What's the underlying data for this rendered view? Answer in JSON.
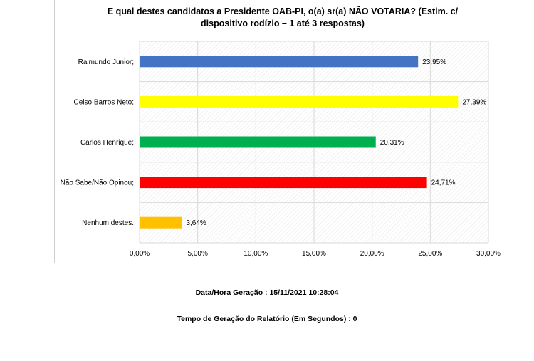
{
  "chart_data": {
    "type": "bar",
    "orientation": "horizontal",
    "title_lines": [
      "E qual destes candidatos a Presidente OAB-PI, o(a) sr(a) NÃO VOTARIA? (Estim. c/",
      "dispositivo rodízio – 1 até 3 respostas)"
    ],
    "categories": [
      "Raimundo Junior;",
      "Celso Barros Neto;",
      "Carlos Henrique;",
      "Não Sabe/Não Opinou;",
      "Nenhum destes."
    ],
    "values": [
      23.95,
      27.39,
      20.31,
      24.71,
      3.64
    ],
    "value_labels": [
      "23,95%",
      "27,39%",
      "20,31%",
      "24,71%",
      "3,64%"
    ],
    "colors": [
      "#4472c4",
      "#ffff00",
      "#00b050",
      "#ff0000",
      "#ffc000"
    ],
    "xlim": [
      0,
      30
    ],
    "x_ticks": [
      0,
      5,
      10,
      15,
      20,
      25,
      30
    ],
    "x_tick_labels": [
      "0,00%",
      "5,00%",
      "10,00%",
      "15,00%",
      "20,00%",
      "25,00%",
      "30,00%"
    ],
    "grid": true,
    "legend": "none"
  },
  "footer": {
    "generated_at": "Data/Hora Geração : 15/11/2021 10:28:04",
    "generation_time": "Tempo de Geração do Relatório (Em Segundos) : 0"
  }
}
